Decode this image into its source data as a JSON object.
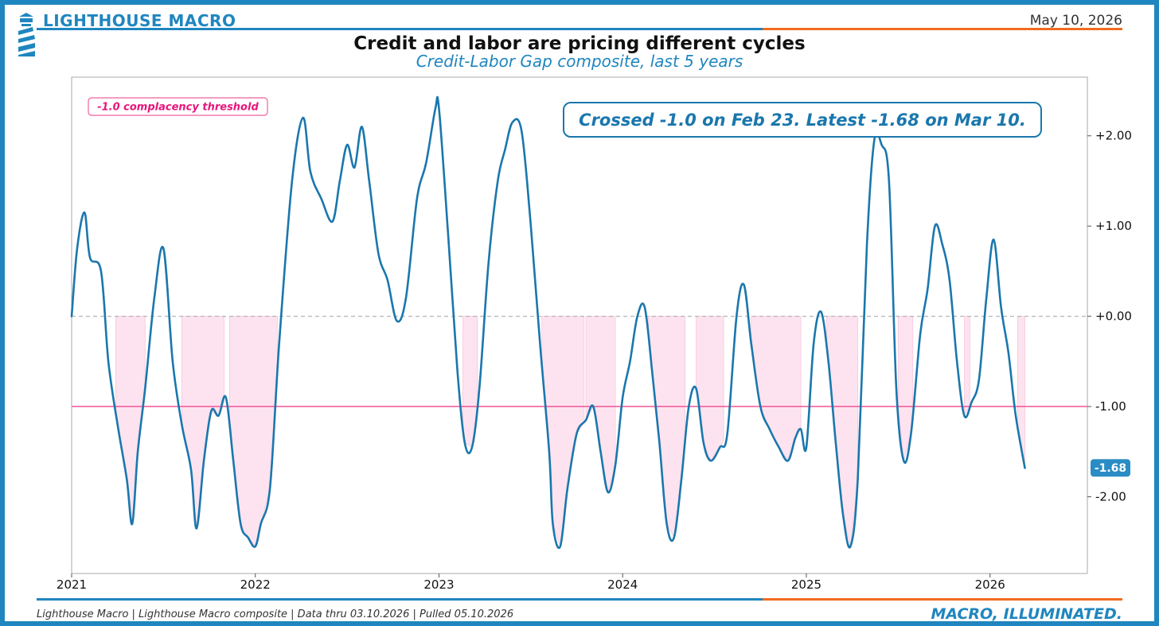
{
  "header": {
    "brand": "LIGHTHOUSE MACRO",
    "date": "May 10, 2026",
    "title": "Credit and labor are pricing different cycles",
    "subtitle": "Credit-Labor Gap composite, last 5 years"
  },
  "footer": {
    "source": "Lighthouse Macro | Lighthouse Macro composite | Data thru 03.10.2026 | Pulled 05.10.2026",
    "tagline": "MACRO, ILLUMINATED."
  },
  "colors": {
    "brand_blue": "#1f86bf",
    "line": "#1a77ad",
    "accent_orange": "#f26b21",
    "threshold": "#f0609e",
    "fill": "#fde3ef"
  },
  "chart_data": {
    "type": "line",
    "series": [
      {
        "values": [
          [
            2021.0,
            0.0
          ],
          [
            2021.03,
            0.75
          ],
          [
            2021.07,
            1.15
          ],
          [
            2021.1,
            0.65
          ],
          [
            2021.16,
            0.5
          ],
          [
            2021.2,
            -0.5
          ],
          [
            2021.25,
            -1.2
          ],
          [
            2021.3,
            -1.8
          ],
          [
            2021.33,
            -2.3
          ],
          [
            2021.36,
            -1.5
          ],
          [
            2021.4,
            -0.8
          ],
          [
            2021.45,
            0.2
          ],
          [
            2021.5,
            0.75
          ],
          [
            2021.55,
            -0.5
          ],
          [
            2021.6,
            -1.2
          ],
          [
            2021.65,
            -1.7
          ],
          [
            2021.68,
            -2.35
          ],
          [
            2021.72,
            -1.6
          ],
          [
            2021.76,
            -1.05
          ],
          [
            2021.8,
            -1.1
          ],
          [
            2021.84,
            -0.9
          ],
          [
            2021.88,
            -1.6
          ],
          [
            2021.92,
            -2.3
          ],
          [
            2021.96,
            -2.45
          ],
          [
            2022.0,
            -2.55
          ],
          [
            2022.03,
            -2.3
          ],
          [
            2022.08,
            -1.9
          ],
          [
            2022.13,
            -0.3
          ],
          [
            2022.2,
            1.5
          ],
          [
            2022.26,
            2.2
          ],
          [
            2022.3,
            1.6
          ],
          [
            2022.36,
            1.3
          ],
          [
            2022.42,
            1.05
          ],
          [
            2022.46,
            1.5
          ],
          [
            2022.5,
            1.9
          ],
          [
            2022.54,
            1.65
          ],
          [
            2022.58,
            2.1
          ],
          [
            2022.62,
            1.5
          ],
          [
            2022.67,
            0.7
          ],
          [
            2022.72,
            0.4
          ],
          [
            2022.77,
            -0.05
          ],
          [
            2022.82,
            0.2
          ],
          [
            2022.88,
            1.3
          ],
          [
            2022.93,
            1.7
          ],
          [
            2022.98,
            2.3
          ],
          [
            2023.0,
            2.3
          ],
          [
            2023.05,
            0.9
          ],
          [
            2023.1,
            -0.6
          ],
          [
            2023.14,
            -1.4
          ],
          [
            2023.18,
            -1.45
          ],
          [
            2023.22,
            -0.8
          ],
          [
            2023.27,
            0.6
          ],
          [
            2023.32,
            1.5
          ],
          [
            2023.36,
            1.85
          ],
          [
            2023.4,
            2.15
          ],
          [
            2023.45,
            2.05
          ],
          [
            2023.5,
            1.0
          ],
          [
            2023.55,
            -0.3
          ],
          [
            2023.6,
            -1.5
          ],
          [
            2023.62,
            -2.3
          ],
          [
            2023.66,
            -2.55
          ],
          [
            2023.7,
            -1.9
          ],
          [
            2023.75,
            -1.3
          ],
          [
            2023.8,
            -1.15
          ],
          [
            2023.84,
            -1.0
          ],
          [
            2023.88,
            -1.5
          ],
          [
            2023.92,
            -1.95
          ],
          [
            2023.96,
            -1.65
          ],
          [
            2024.0,
            -0.9
          ],
          [
            2024.04,
            -0.5
          ],
          [
            2024.08,
            0.0
          ],
          [
            2024.12,
            0.1
          ],
          [
            2024.16,
            -0.6
          ],
          [
            2024.2,
            -1.4
          ],
          [
            2024.24,
            -2.3
          ],
          [
            2024.28,
            -2.45
          ],
          [
            2024.32,
            -1.8
          ],
          [
            2024.36,
            -1.0
          ],
          [
            2024.4,
            -0.8
          ],
          [
            2024.44,
            -1.4
          ],
          [
            2024.48,
            -1.6
          ],
          [
            2024.53,
            -1.45
          ],
          [
            2024.57,
            -1.3
          ],
          [
            2024.62,
            0.0
          ],
          [
            2024.66,
            0.35
          ],
          [
            2024.7,
            -0.3
          ],
          [
            2024.75,
            -1.0
          ],
          [
            2024.8,
            -1.25
          ],
          [
            2024.85,
            -1.45
          ],
          [
            2024.9,
            -1.6
          ],
          [
            2024.94,
            -1.35
          ],
          [
            2024.97,
            -1.25
          ],
          [
            2025.0,
            -1.45
          ],
          [
            2025.04,
            -0.3
          ],
          [
            2025.08,
            0.05
          ],
          [
            2025.12,
            -0.5
          ],
          [
            2025.16,
            -1.4
          ],
          [
            2025.2,
            -2.2
          ],
          [
            2025.24,
            -2.55
          ],
          [
            2025.28,
            -1.8
          ],
          [
            2025.33,
            0.8
          ],
          [
            2025.37,
            1.95
          ],
          [
            2025.41,
            1.9
          ],
          [
            2025.45,
            1.5
          ],
          [
            2025.49,
            -0.8
          ],
          [
            2025.53,
            -1.6
          ],
          [
            2025.57,
            -1.3
          ],
          [
            2025.62,
            -0.2
          ],
          [
            2025.66,
            0.3
          ],
          [
            2025.7,
            1.0
          ],
          [
            2025.74,
            0.8
          ],
          [
            2025.78,
            0.4
          ],
          [
            2025.82,
            -0.5
          ],
          [
            2025.86,
            -1.1
          ],
          [
            2025.9,
            -0.95
          ],
          [
            2025.94,
            -0.7
          ],
          [
            2025.98,
            0.2
          ],
          [
            2026.02,
            0.85
          ],
          [
            2026.06,
            0.1
          ],
          [
            2026.1,
            -0.4
          ],
          [
            2026.14,
            -1.1
          ],
          [
            2026.19,
            -1.68
          ]
        ]
      }
    ],
    "shaded_below_zero": [
      [
        2021.24,
        2021.4
      ],
      [
        2021.6,
        2021.83
      ],
      [
        2021.86,
        2022.12
      ],
      [
        2023.13,
        2023.21
      ],
      [
        2023.56,
        2023.79
      ],
      [
        2023.8,
        2023.96
      ],
      [
        2024.14,
        2024.34
      ],
      [
        2024.4,
        2024.55
      ],
      [
        2024.7,
        2024.97
      ],
      [
        2025.11,
        2025.28
      ],
      [
        2025.5,
        2025.58
      ],
      [
        2025.86,
        2025.89
      ],
      [
        2026.15,
        2026.19
      ]
    ],
    "title": "Credit and labor are pricing different cycles",
    "subtitle": "Credit-Labor Gap composite, last 5 years",
    "xlabel": "",
    "ylabel": "",
    "xlim": [
      2021.0,
      2026.53
    ],
    "ylim": [
      -2.85,
      2.65
    ],
    "x_ticks": [
      2021,
      2022,
      2023,
      2024,
      2025,
      2026
    ],
    "x_tick_labels": [
      "2021",
      "2022",
      "2023",
      "2024",
      "2025",
      "2026"
    ],
    "y_ticks": [
      2,
      1,
      0,
      -1,
      -2
    ],
    "y_tick_labels": [
      "+2.00",
      "+1.00",
      "+0.00",
      "-1.00",
      "-2.00"
    ],
    "y_axis_side": "right",
    "zero_line": "dashed",
    "threshold": {
      "value": -1.0,
      "label": "-1.0 complacency threshold"
    },
    "annotation": "Crossed -1.0 on Feb 23. Latest -1.68 on Mar 10.",
    "latest_value_label": "-1.68",
    "grid": false
  }
}
